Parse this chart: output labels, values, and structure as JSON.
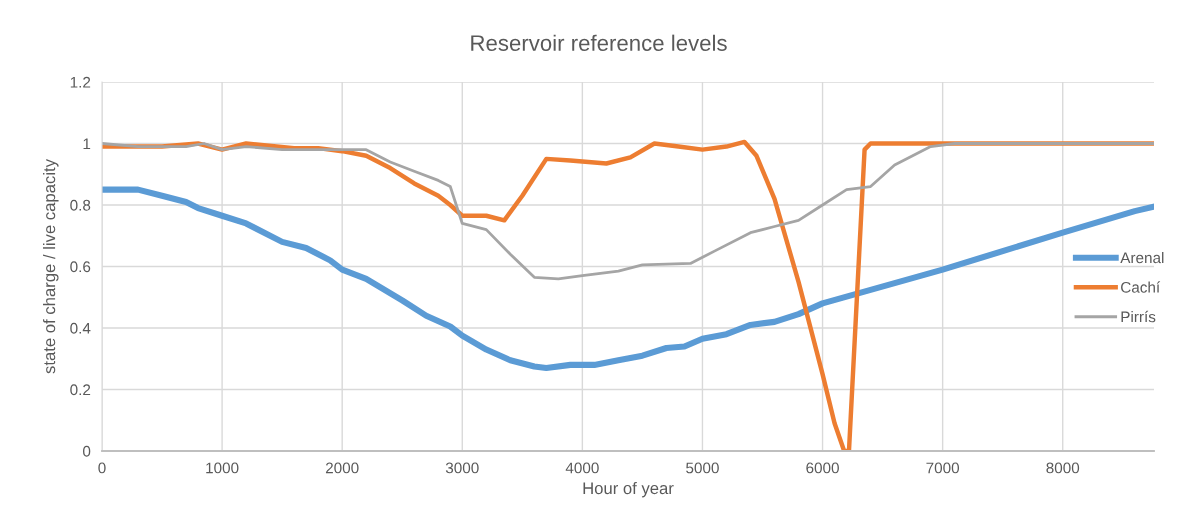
{
  "chart_data": {
    "type": "line",
    "title": "Reservoir reference levels",
    "xlabel": "Hour of year",
    "ylabel": "state of charge / live capacity",
    "xlim": [
      0,
      8760
    ],
    "xticks": [
      0,
      1000,
      2000,
      3000,
      4000,
      5000,
      6000,
      7000,
      8000
    ],
    "ylim": [
      0,
      1.2
    ],
    "yticks": [
      0,
      0.2,
      0.4,
      0.6,
      0.8,
      1,
      1.2
    ],
    "grid": true,
    "legend": "right",
    "marker": "none",
    "line_style": "solid",
    "series": [
      {
        "name": "Arenal",
        "color": "#5b9bd5",
        "x": [
          0,
          300,
          500,
          700,
          800,
          1000,
          1200,
          1500,
          1700,
          1900,
          2000,
          2200,
          2500,
          2700,
          2900,
          3000,
          3200,
          3400,
          3600,
          3700,
          3900,
          4100,
          4300,
          4500,
          4700,
          4850,
          5000,
          5200,
          5400,
          5600,
          5800,
          6000,
          7000,
          8000,
          8600,
          8760
        ],
        "values": [
          0.85,
          0.85,
          0.83,
          0.81,
          0.79,
          0.765,
          0.74,
          0.68,
          0.66,
          0.62,
          0.59,
          0.56,
          0.49,
          0.44,
          0.405,
          0.375,
          0.33,
          0.295,
          0.275,
          0.27,
          0.28,
          0.28,
          0.295,
          0.31,
          0.335,
          0.34,
          0.365,
          0.38,
          0.41,
          0.42,
          0.445,
          0.48,
          0.59,
          0.71,
          0.78,
          0.795
        ]
      },
      {
        "name": "Cachí",
        "color": "#ed7d31",
        "x": [
          0,
          500,
          800,
          1000,
          1200,
          1600,
          1800,
          2000,
          2200,
          2400,
          2600,
          2800,
          2900,
          3000,
          3200,
          3350,
          3500,
          3700,
          3900,
          4200,
          4400,
          4600,
          4800,
          5000,
          5200,
          5350,
          5450,
          5600,
          5800,
          6000,
          6100,
          6180,
          6220,
          6350,
          6400,
          6600,
          8760
        ],
        "values": [
          0.99,
          0.99,
          1.0,
          0.98,
          1.0,
          0.985,
          0.985,
          0.975,
          0.96,
          0.92,
          0.87,
          0.83,
          0.8,
          0.765,
          0.765,
          0.75,
          0.83,
          0.95,
          0.945,
          0.935,
          0.955,
          1.0,
          0.99,
          0.98,
          0.99,
          1.005,
          0.96,
          0.82,
          0.55,
          0.25,
          0.09,
          0.0,
          0.0,
          0.98,
          1.0,
          1.0,
          1.0
        ]
      },
      {
        "name": "Pirrís",
        "color": "#a5a5a5",
        "x": [
          0,
          300,
          700,
          850,
          1000,
          1200,
          1500,
          2000,
          2200,
          2400,
          2600,
          2800,
          2900,
          3000,
          3200,
          3400,
          3600,
          3800,
          4000,
          4300,
          4500,
          4900,
          5100,
          5400,
          5600,
          5800,
          6000,
          6200,
          6400,
          6600,
          6900,
          7100,
          8760
        ],
        "values": [
          1.0,
          0.99,
          0.99,
          1.0,
          0.98,
          0.99,
          0.98,
          0.98,
          0.98,
          0.94,
          0.91,
          0.88,
          0.86,
          0.74,
          0.72,
          0.64,
          0.565,
          0.56,
          0.57,
          0.585,
          0.605,
          0.61,
          0.65,
          0.71,
          0.73,
          0.75,
          0.8,
          0.85,
          0.86,
          0.93,
          0.99,
          1.0,
          1.0
        ]
      }
    ]
  }
}
